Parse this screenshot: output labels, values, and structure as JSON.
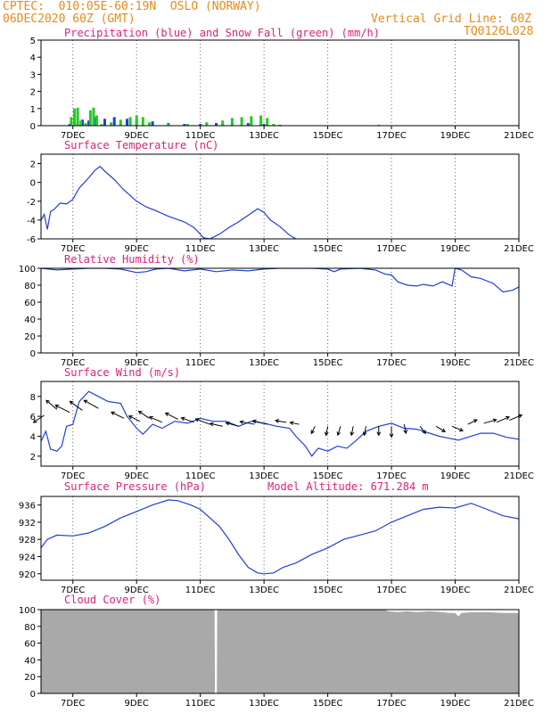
{
  "header": {
    "left_line1": "CPTEC:  010:05E-60:19N  OSLO (NORWAY)",
    "left_line2": "06DEC2020 60Z (GMT)",
    "right_line1": "Vertical Grid Line: 60Z",
    "right_line2": "TQ0126L028"
  },
  "colors": {
    "header": "#e88a1a",
    "title": "#e0207a",
    "line": "#1f3fd8",
    "snow": "#22cc22",
    "cloud": "#a9a9a9"
  },
  "chart_data": [
    {
      "type": "bar",
      "title": "Precipitation (blue) and Snow Fall (green) (mm/h)",
      "x_ticks": [
        "7DEC",
        "9DEC",
        "11DEC",
        "13DEC",
        "15DEC",
        "17DEC",
        "19DEC",
        "21DEC"
      ],
      "ylim": [
        0,
        5
      ],
      "y_ticks": [
        0,
        1,
        2,
        3,
        4,
        5
      ],
      "grid": "vertical dotted",
      "series": [
        {
          "name": "Precipitation (blue)",
          "points": [
            [
              6.9,
              0.1
            ],
            [
              7.3,
              0.35
            ],
            [
              7.5,
              0.3
            ],
            [
              7.7,
              0.5
            ],
            [
              8.0,
              0.4
            ],
            [
              8.3,
              0.5
            ],
            [
              8.7,
              0.4
            ],
            [
              9.0,
              0.3
            ],
            [
              9.5,
              0.25
            ],
            [
              10.0,
              0.15
            ],
            [
              10.5,
              0.1
            ],
            [
              11.0,
              0.1
            ],
            [
              11.5,
              0.15
            ],
            [
              12.0,
              0.1
            ],
            [
              12.5,
              0.15
            ],
            [
              13.0,
              0.1
            ],
            [
              13.5,
              0.05
            ]
          ]
        },
        {
          "name": "Snow Fall (green)",
          "points": [
            [
              6.95,
              0.5
            ],
            [
              7.05,
              1.0
            ],
            [
              7.15,
              1.05
            ],
            [
              7.25,
              0.3
            ],
            [
              7.4,
              0.15
            ],
            [
              7.55,
              0.9
            ],
            [
              7.65,
              1.05
            ],
            [
              7.75,
              0.6
            ],
            [
              7.9,
              0.1
            ],
            [
              8.2,
              0.2
            ],
            [
              8.5,
              0.35
            ],
            [
              8.8,
              0.5
            ],
            [
              9.0,
              0.6
            ],
            [
              9.2,
              0.5
            ],
            [
              9.4,
              0.2
            ],
            [
              10.0,
              0.1
            ],
            [
              10.6,
              0.1
            ],
            [
              11.2,
              0.2
            ],
            [
              11.7,
              0.3
            ],
            [
              12.0,
              0.45
            ],
            [
              12.3,
              0.5
            ],
            [
              12.6,
              0.55
            ],
            [
              12.9,
              0.6
            ],
            [
              13.1,
              0.45
            ],
            [
              13.3,
              0.1
            ],
            [
              16.6,
              0.05
            ]
          ]
        }
      ]
    },
    {
      "type": "line",
      "title": "Surface Temperature (nC)",
      "x_ticks": [
        "7DEC",
        "9DEC",
        "11DEC",
        "13DEC",
        "15DEC",
        "17DEC",
        "19DEC",
        "21DEC"
      ],
      "ylim": [
        -6,
        3
      ],
      "y_ticks": [
        -6,
        -4,
        -2,
        0,
        2
      ],
      "grid": "vertical dotted",
      "series": [
        {
          "name": "",
          "points": [
            [
              6.0,
              -4.0
            ],
            [
              6.1,
              -3.4
            ],
            [
              6.2,
              -5.0
            ],
            [
              6.3,
              -3.1
            ],
            [
              6.4,
              -2.9
            ],
            [
              6.6,
              -2.2
            ],
            [
              6.8,
              -2.3
            ],
            [
              7.0,
              -1.8
            ],
            [
              7.2,
              -0.6
            ],
            [
              7.5,
              0.5
            ],
            [
              7.7,
              1.3
            ],
            [
              7.85,
              1.7
            ],
            [
              8.0,
              1.2
            ],
            [
              8.3,
              0.3
            ],
            [
              8.6,
              -0.8
            ],
            [
              9.0,
              -2.0
            ],
            [
              9.3,
              -2.6
            ],
            [
              9.6,
              -3.0
            ],
            [
              10.0,
              -3.6
            ],
            [
              10.5,
              -4.2
            ],
            [
              10.8,
              -4.8
            ],
            [
              11.0,
              -5.5
            ],
            [
              11.1,
              -5.9
            ],
            [
              11.3,
              -6.0
            ],
            [
              11.6,
              -5.5
            ],
            [
              11.9,
              -4.8
            ],
            [
              12.2,
              -4.2
            ],
            [
              12.5,
              -3.5
            ],
            [
              12.8,
              -2.8
            ],
            [
              13.0,
              -3.2
            ],
            [
              13.2,
              -4.0
            ],
            [
              13.5,
              -4.7
            ],
            [
              13.8,
              -5.6
            ],
            [
              14.0,
              -6.0
            ]
          ]
        }
      ]
    },
    {
      "type": "line",
      "title": "Relative Humidity (%)",
      "x_ticks": [
        "7DEC",
        "9DEC",
        "11DEC",
        "13DEC",
        "15DEC",
        "17DEC",
        "19DEC",
        "21DEC"
      ],
      "ylim": [
        0,
        100
      ],
      "y_ticks": [
        0,
        20,
        40,
        60,
        80,
        100
      ],
      "grid": "vertical dotted",
      "series": [
        {
          "name": "",
          "points": [
            [
              6.0,
              100
            ],
            [
              6.5,
              98
            ],
            [
              7.0,
              99
            ],
            [
              7.5,
              100
            ],
            [
              8.0,
              100
            ],
            [
              8.5,
              99
            ],
            [
              9.0,
              95
            ],
            [
              9.3,
              96
            ],
            [
              9.6,
              99
            ],
            [
              10.0,
              100
            ],
            [
              10.5,
              97
            ],
            [
              11.0,
              99
            ],
            [
              11.5,
              96
            ],
            [
              12.0,
              98
            ],
            [
              12.5,
              97
            ],
            [
              13.0,
              99
            ],
            [
              13.5,
              100
            ],
            [
              14.0,
              100
            ],
            [
              14.5,
              100
            ],
            [
              15.0,
              99
            ],
            [
              15.2,
              96
            ],
            [
              15.4,
              99
            ],
            [
              16.0,
              100
            ],
            [
              16.5,
              98
            ],
            [
              16.8,
              93
            ],
            [
              17.0,
              92
            ],
            [
              17.2,
              84
            ],
            [
              17.5,
              80
            ],
            [
              17.8,
              79
            ],
            [
              18.0,
              81
            ],
            [
              18.3,
              79
            ],
            [
              18.6,
              84
            ],
            [
              18.9,
              79
            ],
            [
              19.0,
              100
            ],
            [
              19.2,
              98
            ],
            [
              19.5,
              90
            ],
            [
              19.8,
              88
            ],
            [
              20.2,
              82
            ],
            [
              20.5,
              72
            ],
            [
              20.8,
              74
            ],
            [
              21.0,
              78
            ]
          ]
        }
      ]
    },
    {
      "type": "line",
      "title": "Surface Wind (m/s)",
      "x_ticks": [
        "7DEC",
        "9DEC",
        "11DEC",
        "13DEC",
        "15DEC",
        "17DEC",
        "19DEC",
        "21DEC"
      ],
      "ylim": [
        1,
        9.5
      ],
      "y_ticks": [
        2,
        4,
        6,
        8
      ],
      "grid": "vertical dotted",
      "series": [
        {
          "name": "",
          "points": [
            [
              6.0,
              3.5
            ],
            [
              6.15,
              4.5
            ],
            [
              6.3,
              2.7
            ],
            [
              6.5,
              2.5
            ],
            [
              6.65,
              3.0
            ],
            [
              6.8,
              5.0
            ],
            [
              7.0,
              5.2
            ],
            [
              7.2,
              7.5
            ],
            [
              7.5,
              8.5
            ],
            [
              7.8,
              8.0
            ],
            [
              8.1,
              7.5
            ],
            [
              8.5,
              7.3
            ],
            [
              8.7,
              6.0
            ],
            [
              9.0,
              4.8
            ],
            [
              9.2,
              4.2
            ],
            [
              9.5,
              5.2
            ],
            [
              9.8,
              4.8
            ],
            [
              10.2,
              5.5
            ],
            [
              10.6,
              5.3
            ],
            [
              11.0,
              5.8
            ],
            [
              11.4,
              5.5
            ],
            [
              11.8,
              5.5
            ],
            [
              12.2,
              5.0
            ],
            [
              12.6,
              5.5
            ],
            [
              13.0,
              5.3
            ],
            [
              13.4,
              5.0
            ],
            [
              13.8,
              4.8
            ],
            [
              14.0,
              4.0
            ],
            [
              14.3,
              3.0
            ],
            [
              14.5,
              2.0
            ],
            [
              14.7,
              2.8
            ],
            [
              15.0,
              2.5
            ],
            [
              15.3,
              3.0
            ],
            [
              15.6,
              2.8
            ],
            [
              15.9,
              3.6
            ],
            [
              16.2,
              4.5
            ],
            [
              16.6,
              5.0
            ],
            [
              17.0,
              5.3
            ],
            [
              17.4,
              4.8
            ],
            [
              17.8,
              4.7
            ],
            [
              18.1,
              4.4
            ],
            [
              18.5,
              4.0
            ],
            [
              18.8,
              3.8
            ],
            [
              19.1,
              3.6
            ],
            [
              19.4,
              3.9
            ],
            [
              19.8,
              4.3
            ],
            [
              20.2,
              4.3
            ],
            [
              20.6,
              3.9
            ],
            [
              21.0,
              3.7
            ]
          ]
        }
      ],
      "arrow_x_positions": [
        6.1,
        6.5,
        6.9,
        7.3,
        7.8,
        8.6,
        9.1,
        9.4,
        9.8,
        10.3,
        10.8,
        11.3,
        11.7,
        12.2,
        12.7,
        13.1,
        13.7,
        14.1,
        14.6,
        15.0,
        15.4,
        15.8,
        16.2,
        16.6,
        17.0,
        17.4,
        17.9,
        18.4,
        18.9,
        19.4,
        19.9,
        20.3,
        20.7
      ]
    },
    {
      "type": "line",
      "title": "Surface Pressure (hPa)",
      "subtitle": "Model Altitude: 671.284 m",
      "x_ticks": [
        "7DEC",
        "9DEC",
        "11DEC",
        "13DEC",
        "15DEC",
        "17DEC",
        "19DEC",
        "21DEC"
      ],
      "ylim": [
        918.5,
        938
      ],
      "y_ticks": [
        920,
        924,
        928,
        932,
        936
      ],
      "grid": "vertical dotted",
      "series": [
        {
          "name": "",
          "points": [
            [
              6.0,
              926
            ],
            [
              6.2,
              928
            ],
            [
              6.5,
              929
            ],
            [
              7.0,
              928.8
            ],
            [
              7.5,
              929.5
            ],
            [
              8.0,
              931
            ],
            [
              8.5,
              933
            ],
            [
              9.0,
              934.5
            ],
            [
              9.5,
              936
            ],
            [
              10.0,
              937.2
            ],
            [
              10.3,
              937
            ],
            [
              10.7,
              936
            ],
            [
              11.0,
              935
            ],
            [
              11.3,
              933
            ],
            [
              11.6,
              931
            ],
            [
              11.9,
              928
            ],
            [
              12.2,
              924.5
            ],
            [
              12.5,
              921.5
            ],
            [
              12.8,
              920.2
            ],
            [
              13.0,
              920
            ],
            [
              13.3,
              920.2
            ],
            [
              13.6,
              921.5
            ],
            [
              14.0,
              922.5
            ],
            [
              14.5,
              924.5
            ],
            [
              15.0,
              926
            ],
            [
              15.5,
              928
            ],
            [
              16.0,
              929
            ],
            [
              16.5,
              930
            ],
            [
              17.0,
              932
            ],
            [
              17.5,
              933.5
            ],
            [
              18.0,
              935
            ],
            [
              18.5,
              935.5
            ],
            [
              19.0,
              935.3
            ],
            [
              19.5,
              936.4
            ],
            [
              20.0,
              935
            ],
            [
              20.5,
              933.5
            ],
            [
              21.0,
              932.8
            ]
          ]
        }
      ]
    },
    {
      "type": "area",
      "title": "Cloud Cover (%)",
      "x_ticks": [
        "7DEC",
        "9DEC",
        "11DEC",
        "13DEC",
        "15DEC",
        "17DEC",
        "19DEC",
        "21DEC"
      ],
      "ylim": [
        0,
        100
      ],
      "y_ticks": [
        0,
        20,
        40,
        60,
        80,
        100
      ],
      "grid": "none",
      "series": [
        {
          "name": "",
          "points": [
            [
              6.0,
              100
            ],
            [
              11.45,
              100
            ],
            [
              11.46,
              0
            ],
            [
              11.52,
              0
            ],
            [
              11.53,
              100
            ],
            [
              16.8,
              100
            ],
            [
              16.9,
              98
            ],
            [
              17.2,
              97
            ],
            [
              17.5,
              98
            ],
            [
              17.8,
              97
            ],
            [
              18.2,
              98
            ],
            [
              18.6,
              97
            ],
            [
              18.8,
              96
            ],
            [
              19.0,
              96
            ],
            [
              19.1,
              92
            ],
            [
              19.2,
              96
            ],
            [
              19.6,
              97
            ],
            [
              20.0,
              97
            ],
            [
              20.5,
              96
            ],
            [
              21.0,
              96
            ]
          ]
        }
      ]
    }
  ]
}
